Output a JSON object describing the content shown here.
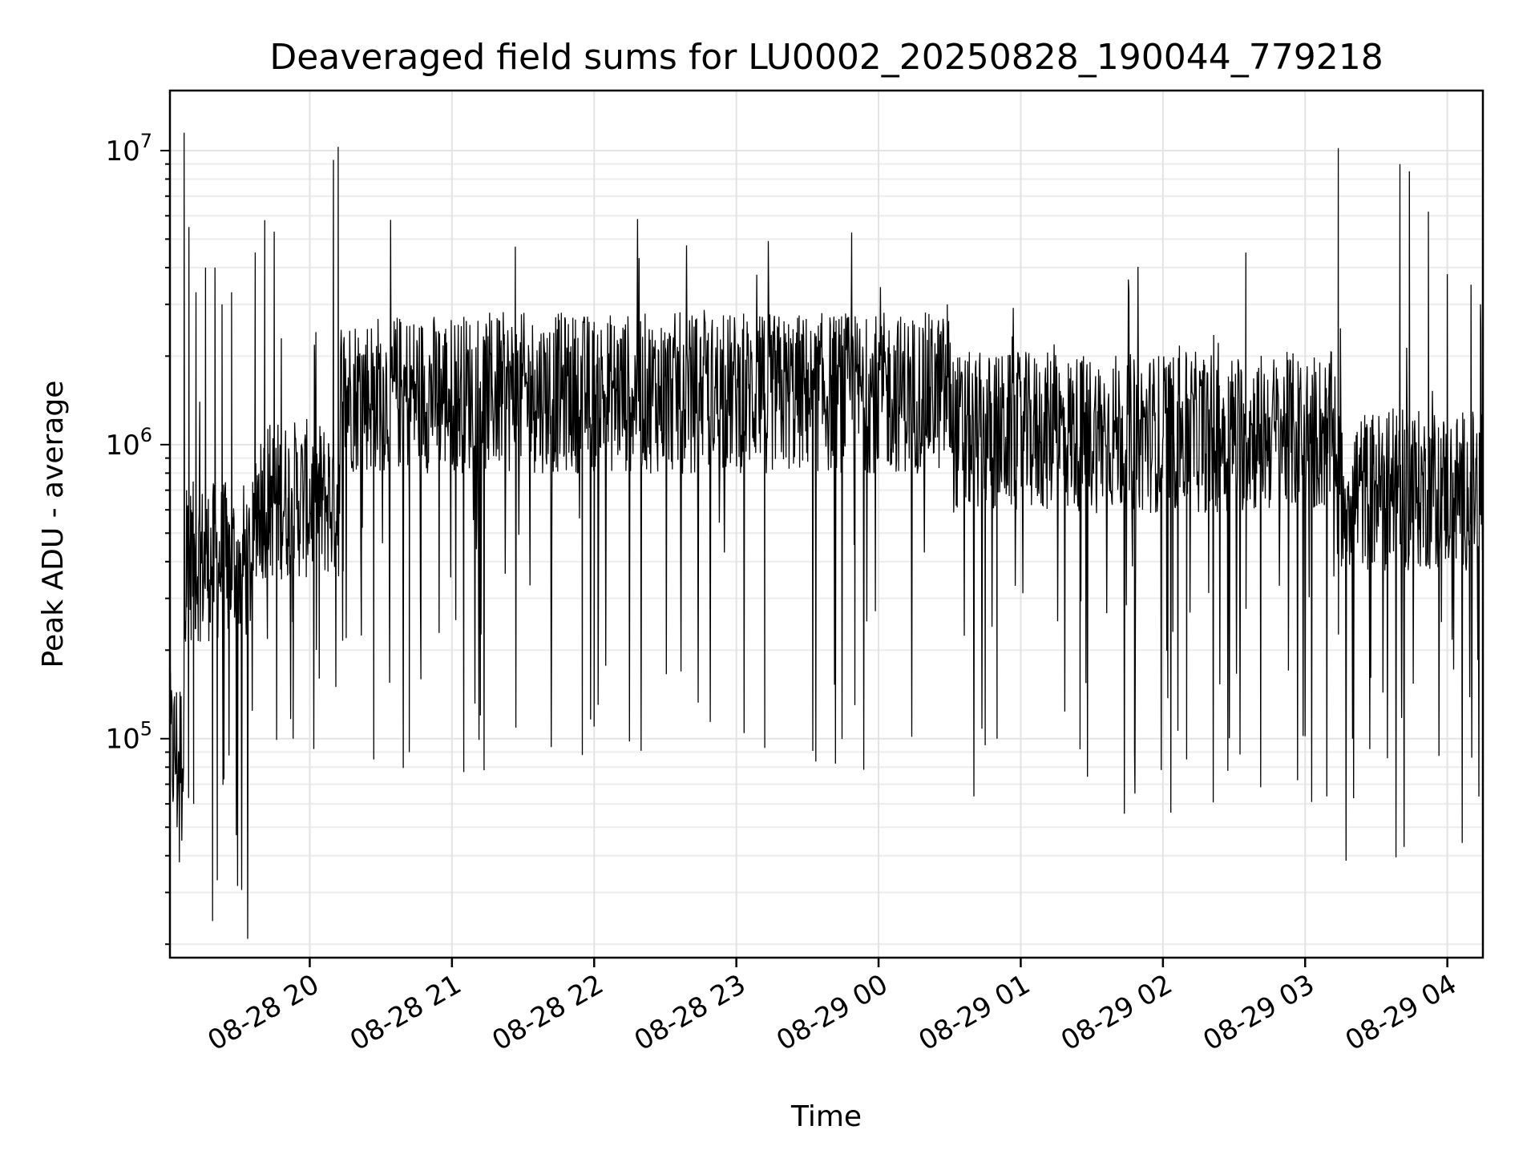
{
  "chart_data": {
    "type": "line",
    "title": "Deaveraged field sums for LU0002_20250828_190044_779218",
    "xlabel": "Time",
    "ylabel": "Peak ADU - average",
    "y_scale": "log",
    "ylim": [
      18000,
      16000000
    ],
    "xlim": [
      "2025-08-28 19:01",
      "2025-08-29 04:15"
    ],
    "x_ticks": [
      "08-28 20",
      "08-28 21",
      "08-28 22",
      "08-28 23",
      "08-29 00",
      "08-29 01",
      "08-29 02",
      "08-29 03",
      "08-29 04"
    ],
    "x_tick_values": [
      "2025-08-28 20:00",
      "2025-08-28 21:00",
      "2025-08-28 22:00",
      "2025-08-28 23:00",
      "2025-08-29 00:00",
      "2025-08-29 01:00",
      "2025-08-29 02:00",
      "2025-08-29 03:00",
      "2025-08-29 04:00"
    ],
    "y_ticks": [
      100000,
      1000000,
      10000000
    ],
    "y_tick_exponents": [
      "5",
      "6",
      "7"
    ],
    "grid": true,
    "line_color": "#000000",
    "series": [
      {
        "note_points": [
          [
            "2025-08-28 19:01",
            90000
          ],
          [
            "2025-08-28 19:02",
            120000
          ],
          [
            "2025-08-28 19:03",
            95000
          ],
          [
            "2025-08-28 19:04",
            50000
          ],
          [
            "2025-08-28 19:05",
            38000
          ],
          [
            "2025-08-28 19:06",
            45000
          ],
          [
            "2025-08-28 19:07",
            11500000
          ],
          [
            "2025-08-28 19:08",
            700000
          ],
          [
            "2025-08-28 19:09",
            5500000
          ],
          [
            "2025-08-28 19:10",
            600000
          ],
          [
            "2025-08-28 19:11",
            60000
          ],
          [
            "2025-08-28 19:12",
            3300000
          ],
          [
            "2025-08-28 19:14",
            400000
          ],
          [
            "2025-08-28 19:16",
            4000000
          ],
          [
            "2025-08-28 19:17",
            300000
          ],
          [
            "2025-08-28 19:19",
            24000
          ],
          [
            "2025-08-28 19:20",
            4000000
          ],
          [
            "2025-08-28 19:21",
            33000
          ],
          [
            "2025-08-28 19:23",
            3000000
          ],
          [
            "2025-08-28 19:25",
            300000
          ],
          [
            "2025-08-28 19:27",
            3300000
          ],
          [
            "2025-08-28 19:29",
            47000
          ],
          [
            "2025-08-28 19:31",
            300000
          ],
          [
            "2025-08-28 19:34",
            200000
          ],
          [
            "2025-08-28 19:37",
            4500000
          ],
          [
            "2025-08-28 19:39",
            600000
          ],
          [
            "2025-08-28 19:41",
            5800000
          ],
          [
            "2025-08-28 19:43",
            500000
          ],
          [
            "2025-08-28 19:45",
            5300000
          ],
          [
            "2025-08-28 19:46",
            99000
          ],
          [
            "2025-08-28 19:48",
            2300000
          ],
          [
            "2025-08-28 19:51",
            450000
          ],
          [
            "2025-08-28 19:53",
            100000
          ],
          [
            "2025-08-28 19:56",
            600000
          ],
          [
            "2025-08-28 19:59",
            500000
          ],
          [
            "2025-08-28 20:02",
            2000000
          ],
          [
            "2025-08-28 20:04",
            160000
          ],
          [
            "2025-08-28 20:06",
            800000
          ],
          [
            "2025-08-28 20:08",
            1000000
          ],
          [
            "2025-08-28 20:10",
            9300000
          ],
          [
            "2025-08-28 20:11",
            150000
          ],
          [
            "2025-08-28 20:12",
            10300000
          ],
          [
            "2025-08-28 20:14",
            1400000
          ],
          [
            "2025-08-28 20:20",
            1500000
          ],
          [
            "2025-08-28 20:27",
            85000
          ],
          [
            "2025-08-28 20:35",
            1600000
          ],
          [
            "2025-08-28 20:42",
            90000
          ],
          [
            "2025-08-28 21:05",
            77000
          ],
          [
            "2025-08-28 21:12",
            120000
          ],
          [
            "2025-08-28 21:35",
            1800000
          ],
          [
            "2025-08-28 21:55",
            88000
          ],
          [
            "2025-08-28 22:00",
            110000
          ],
          [
            "2025-08-28 22:30",
            1700000
          ],
          [
            "2025-08-28 23:12",
            93000
          ],
          [
            "2025-08-28 23:30",
            1800000
          ],
          [
            "2025-08-28 23:50",
            130000
          ],
          [
            "2025-08-29 00:00",
            1600000
          ],
          [
            "2025-08-29 00:25",
            2500000
          ],
          [
            "2025-08-29 00:29",
            3000000
          ],
          [
            "2025-08-29 00:40",
            1200000
          ],
          [
            "2025-08-29 00:45",
            95000
          ],
          [
            "2025-08-29 00:50",
            100000
          ],
          [
            "2025-08-29 01:10",
            1100000
          ],
          [
            "2025-08-29 01:25",
            92000
          ],
          [
            "2025-08-29 01:48",
            91000
          ],
          [
            "2025-08-29 02:10",
            85000
          ],
          [
            "2025-08-29 02:35",
            4500000
          ],
          [
            "2025-08-29 02:50",
            1200000
          ],
          [
            "2025-08-29 03:14",
            10200000
          ],
          [
            "2025-08-29 03:20",
            100000
          ],
          [
            "2025-08-29 03:30",
            1000000
          ],
          [
            "2025-08-29 03:40",
            9000000
          ],
          [
            "2025-08-29 03:44",
            8500000
          ],
          [
            "2025-08-29 03:52",
            6200000
          ],
          [
            "2025-08-29 04:00",
            3800000
          ],
          [
            "2025-08-29 04:10",
            3500000
          ],
          [
            "2025-08-29 04:14",
            3000000
          ],
          [
            "2025-08-29 04:15",
            800000
          ]
        ]
      }
    ]
  }
}
